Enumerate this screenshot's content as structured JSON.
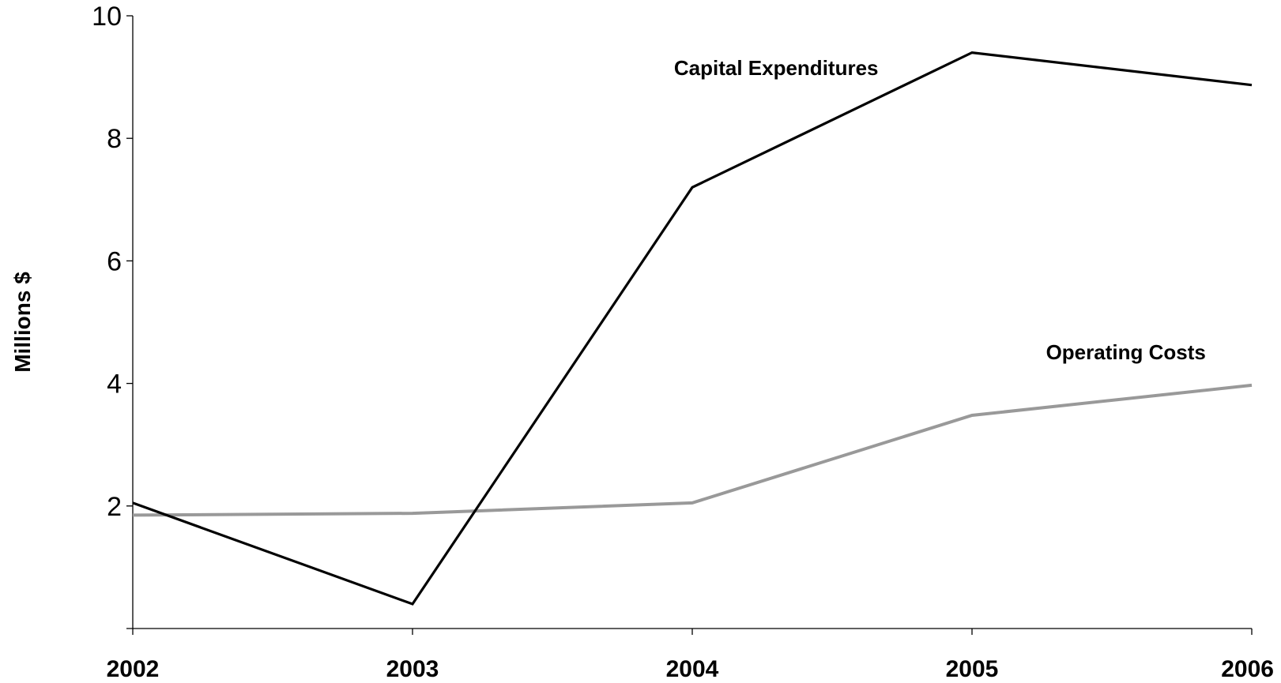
{
  "chart_data": {
    "type": "line",
    "title": "",
    "xlabel": "",
    "ylabel": "Millions $",
    "x": [
      "2002",
      "2003",
      "2004",
      "2005",
      "2006"
    ],
    "yticks": [
      2,
      4,
      6,
      8,
      10
    ],
    "ylim": [
      0,
      10
    ],
    "grid": false,
    "legend": "none",
    "series": [
      {
        "name": "Capital Expenditures",
        "values": [
          2.05,
          0.4,
          7.2,
          9.4,
          8.87
        ],
        "color": "#000000"
      },
      {
        "name": "Operating Costs",
        "values": [
          1.85,
          1.88,
          2.05,
          3.48,
          3.97
        ],
        "color": "#999999"
      }
    ]
  }
}
